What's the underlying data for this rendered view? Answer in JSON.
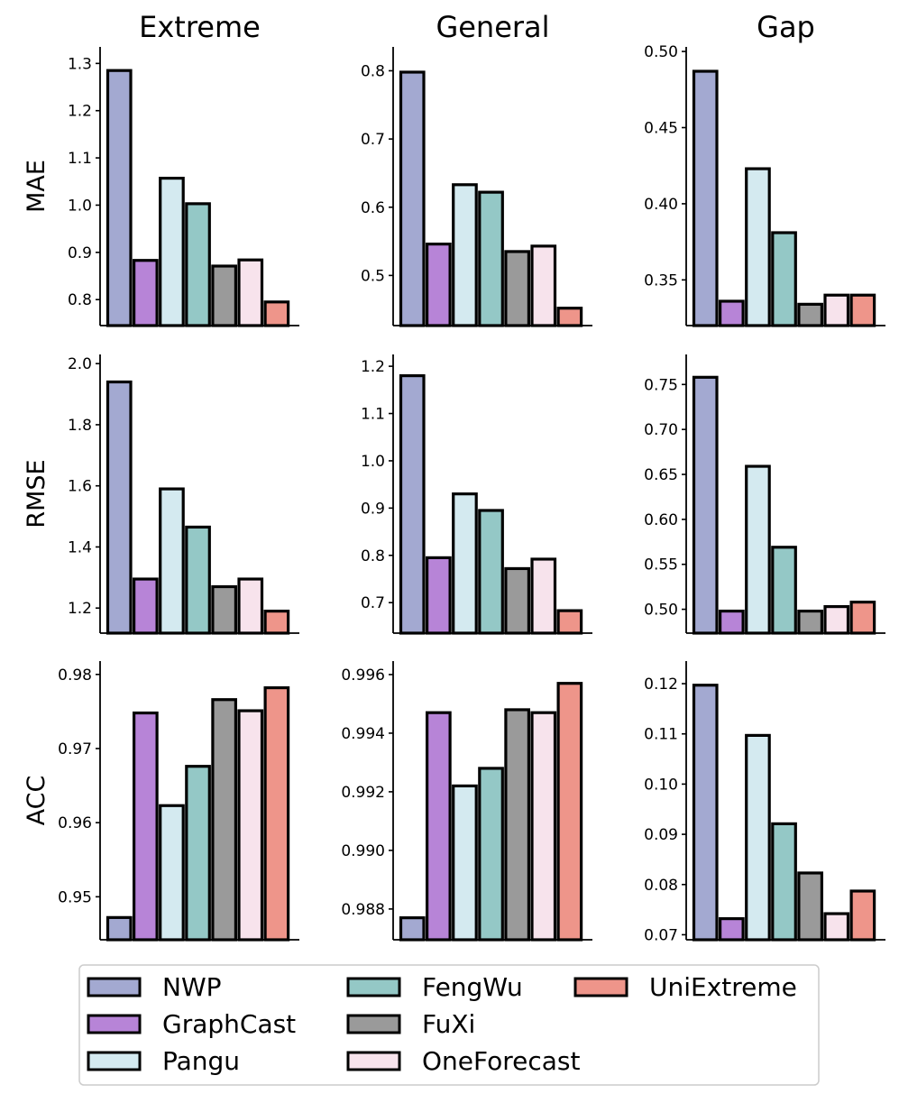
{
  "chart_data": {
    "type": "bar",
    "layout": "3x3 grid of bar charts",
    "column_titles": [
      "Extreme",
      "General",
      "Gap"
    ],
    "row_labels": [
      "MAE",
      "RMSE",
      "ACC"
    ],
    "series": [
      {
        "name": "NWP",
        "color": "#A3A9D1"
      },
      {
        "name": "GraphCast",
        "color": "#B784D7"
      },
      {
        "name": "Pangu",
        "color": "#D4EAF0"
      },
      {
        "name": "FengWu",
        "color": "#94C8C6"
      },
      {
        "name": "FuXi",
        "color": "#9A9A9A"
      },
      {
        "name": "OneForecast",
        "color": "#F7E3EC"
      },
      {
        "name": "UniExtreme",
        "color": "#EE958A"
      }
    ],
    "legend": {
      "placement": "bottom",
      "columns": 3
    },
    "panels": [
      [
        {
          "row": "MAE",
          "column": "Extreme",
          "ylim": [
            0.745,
            1.335
          ],
          "yticks": [
            0.8,
            0.9,
            1.0,
            1.1,
            1.2,
            1.3
          ],
          "ytick_labels": [
            "0.8",
            "0.9",
            "1.0",
            "1.1",
            "1.2",
            "1.3"
          ],
          "values": [
            1.285,
            0.883,
            1.057,
            1.003,
            0.871,
            0.884,
            0.795
          ]
        },
        {
          "row": "MAE",
          "column": "General",
          "ylim": [
            0.4265,
            0.835
          ],
          "yticks": [
            0.5,
            0.6,
            0.7,
            0.8
          ],
          "ytick_labels": [
            "0.5",
            "0.6",
            "0.7",
            "0.8"
          ],
          "values": [
            0.798,
            0.546,
            0.633,
            0.622,
            0.535,
            0.543,
            0.452
          ]
        },
        {
          "row": "MAE",
          "column": "Gap",
          "ylim": [
            0.32,
            0.503
          ],
          "yticks": [
            0.35,
            0.4,
            0.45,
            0.5
          ],
          "ytick_labels": [
            "0.35",
            "0.40",
            "0.45",
            "0.50"
          ],
          "values": [
            0.487,
            0.336,
            0.423,
            0.381,
            0.334,
            0.34,
            0.34
          ]
        }
      ],
      [
        {
          "row": "RMSE",
          "column": "Extreme",
          "ylim": [
            1.118,
            2.03
          ],
          "yticks": [
            1.2,
            1.4,
            1.6,
            1.8,
            2.0
          ],
          "ytick_labels": [
            "1.2",
            "1.4",
            "1.6",
            "1.8",
            "2.0"
          ],
          "values": [
            1.94,
            1.295,
            1.59,
            1.465,
            1.27,
            1.295,
            1.19
          ]
        },
        {
          "row": "RMSE",
          "column": "General",
          "ylim": [
            0.6355,
            1.225
          ],
          "yticks": [
            0.7,
            0.8,
            0.9,
            1.0,
            1.1,
            1.2
          ],
          "ytick_labels": [
            "0.7",
            "0.8",
            "0.9",
            "1.0",
            "1.1",
            "1.2"
          ],
          "values": [
            1.18,
            0.795,
            0.93,
            0.895,
            0.772,
            0.792,
            0.683
          ]
        },
        {
          "row": "RMSE",
          "column": "Gap",
          "ylim": [
            0.4735,
            0.7834
          ],
          "yticks": [
            0.5,
            0.55,
            0.6,
            0.65,
            0.7,
            0.75
          ],
          "ytick_labels": [
            "0.50",
            "0.55",
            "0.60",
            "0.65",
            "0.70",
            "0.75"
          ],
          "values": [
            0.758,
            0.498,
            0.659,
            0.569,
            0.498,
            0.503,
            0.508
          ]
        }
      ],
      [
        {
          "row": "ACC",
          "column": "Extreme",
          "ylim": [
            0.9442,
            0.9818
          ],
          "yticks": [
            0.95,
            0.96,
            0.97,
            0.98
          ],
          "ytick_labels": [
            "0.95",
            "0.96",
            "0.97",
            "0.98"
          ],
          "values": [
            0.9472,
            0.9748,
            0.9623,
            0.9676,
            0.9766,
            0.9751,
            0.9782
          ]
        },
        {
          "row": "ACC",
          "column": "General",
          "ylim": [
            0.98695,
            0.99646
          ],
          "yticks": [
            0.988,
            0.99,
            0.992,
            0.994,
            0.996
          ],
          "ytick_labels": [
            "0.988",
            "0.990",
            "0.992",
            "0.994",
            "0.996"
          ],
          "values": [
            0.9877,
            0.9947,
            0.9922,
            0.9928,
            0.9948,
            0.9947,
            0.9957
          ]
        },
        {
          "row": "ACC",
          "column": "Gap",
          "ylim": [
            0.069,
            0.1245
          ],
          "yticks": [
            0.07,
            0.08,
            0.09,
            0.1,
            0.11,
            0.12
          ],
          "ytick_labels": [
            "0.07",
            "0.08",
            "0.09",
            "0.10",
            "0.11",
            "0.12"
          ],
          "values": [
            0.1197,
            0.0732,
            0.1097,
            0.0921,
            0.0823,
            0.0742,
            0.0787
          ]
        }
      ]
    ]
  }
}
